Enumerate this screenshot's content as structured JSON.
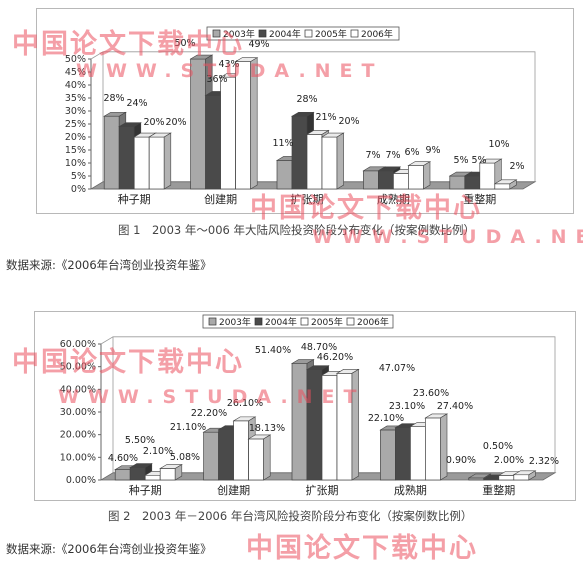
{
  "figure1": {
    "caption": "图 1　2003 年～006 年大陆风险投资阶段分布变化（按案例数比例）",
    "source": "数据来源:《2006年台湾创业投资年鉴》"
  },
  "figure2": {
    "caption": "图 2　2003 年－2006 年台湾风险投资阶段分布变化（按案例数比例）",
    "source": "数据来源:《2006年台湾创业投资年鉴》"
  },
  "watermark": {
    "cn": "中国论文下载中心",
    "en": "WWW.STUDA.NET"
  },
  "colors": {
    "2003": "#a9a9a9",
    "2004": "#4a4a4a",
    "2005": "#ffffff",
    "2006": "#ffffff",
    "watermark": "#eb505f"
  },
  "chart_data": [
    {
      "type": "bar",
      "categories": [
        "种子期",
        "创建期",
        "扩张期",
        "成熟期",
        "重整期"
      ],
      "series": [
        {
          "name": "2003年",
          "values": [
            28,
            50,
            11,
            7,
            5
          ],
          "labels": [
            "28%",
            "50%",
            "11%",
            "7%",
            "5%"
          ]
        },
        {
          "name": "2004年",
          "values": [
            24,
            36,
            28,
            7,
            5
          ],
          "labels": [
            "24%",
            "36%",
            "28%",
            "7%",
            "5%"
          ]
        },
        {
          "name": "2005年",
          "values": [
            20,
            43,
            21,
            6,
            10
          ],
          "labels": [
            "20%",
            "43%",
            "21%",
            "6%",
            "10%"
          ]
        },
        {
          "name": "2006年",
          "values": [
            20,
            49,
            20,
            9,
            2
          ],
          "labels": [
            "20%",
            "49%",
            "20%",
            "9%",
            "2%"
          ]
        }
      ],
      "yticks": [
        "0%",
        "5%",
        "10%",
        "15%",
        "20%",
        "25%",
        "30%",
        "35%",
        "40%",
        "45%",
        "50%"
      ],
      "ylim": [
        0,
        50
      ],
      "legend": "top",
      "grid": false
    },
    {
      "type": "bar",
      "categories": [
        "种子期",
        "创建期",
        "扩张期",
        "成熟期",
        "重整期"
      ],
      "series": [
        {
          "name": "2003年",
          "values": [
            4.6,
            21.1,
            51.4,
            22.1,
            0.9
          ],
          "labels": [
            "4.60%",
            "21.10%",
            "51.40%",
            "22.10%",
            "0.90%"
          ]
        },
        {
          "name": "2004年",
          "values": [
            5.5,
            22.2,
            48.7,
            23.1,
            0.5
          ],
          "labels": [
            "5.50%",
            "22.20%",
            "48.70%",
            "23.10%",
            "0.50%"
          ]
        },
        {
          "name": "2005年",
          "values": [
            2.1,
            26.1,
            46.2,
            23.6,
            2.0
          ],
          "labels": [
            "2.10%",
            "26.10%",
            "46.20%",
            "23.60%",
            "2.00%"
          ]
        },
        {
          "name": "2006年",
          "values": [
            5.08,
            18.13,
            47.07,
            27.4,
            2.32
          ],
          "labels": [
            "5.08%",
            "18.13%",
            "47.07%",
            "27.40%",
            "2.32%"
          ]
        }
      ],
      "yticks": [
        "0.00%",
        "10.00%",
        "20.00%",
        "30.00%",
        "40.00%",
        "50.00%",
        "60.00%"
      ],
      "ylim": [
        0,
        60
      ],
      "legend": "top",
      "grid": false
    }
  ]
}
